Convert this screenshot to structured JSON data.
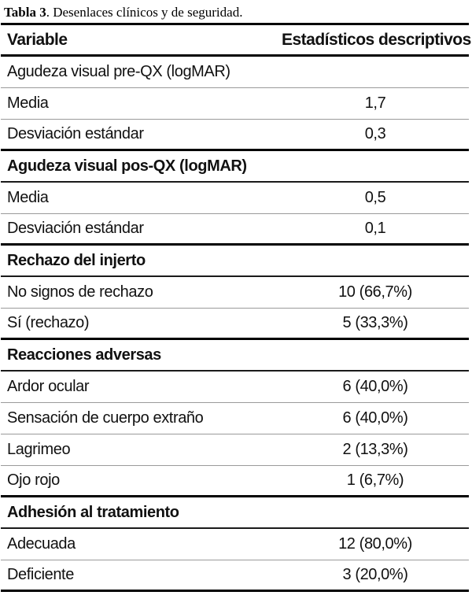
{
  "caption": {
    "label_bold": "Tabla 3",
    "label_rest": ". Desenlaces clínicos y de seguridad."
  },
  "colors": {
    "rule_heavy": "#000000",
    "rule_medium": "#1a1a1a",
    "rule_light": "#9a9a9a",
    "text": "#111111"
  },
  "table": {
    "columns": [
      "Variable",
      "Estadísticos descriptivos"
    ],
    "rows": [
      {
        "type": "section-plain",
        "label": "Agudeza visual pre-QX (logMAR)",
        "value": ""
      },
      {
        "type": "data",
        "label": "Media",
        "value": "1,7"
      },
      {
        "type": "data",
        "label": "Desviación estándar",
        "value": "0,3"
      },
      {
        "type": "section",
        "label": "Agudeza visual pos-QX (logMAR)",
        "value": ""
      },
      {
        "type": "data",
        "label": "Media",
        "value": "0,5"
      },
      {
        "type": "data",
        "label": "Desviación estándar",
        "value": "0,1"
      },
      {
        "type": "section",
        "label": "Rechazo del injerto",
        "value": ""
      },
      {
        "type": "data",
        "label": "No signos de rechazo",
        "value": "10 (66,7%)"
      },
      {
        "type": "data",
        "label": "Sí (rechazo)",
        "value": "5 (33,3%)"
      },
      {
        "type": "section",
        "label": "Reacciones adversas",
        "value": ""
      },
      {
        "type": "data",
        "label": "Ardor ocular",
        "value": "6 (40,0%)"
      },
      {
        "type": "data",
        "label": "Sensación de cuerpo extraño",
        "value": "6 (40,0%)"
      },
      {
        "type": "data",
        "label": "Lagrimeo",
        "value": "2 (13,3%)"
      },
      {
        "type": "data",
        "label": "Ojo rojo",
        "value": "1 (6,7%)"
      },
      {
        "type": "section",
        "label": "Adhesión al tratamiento",
        "value": ""
      },
      {
        "type": "data",
        "label": "Adecuada",
        "value": "12 (80,0%)"
      },
      {
        "type": "data",
        "label": "Deficiente",
        "value": "3 (20,0%)"
      }
    ]
  }
}
